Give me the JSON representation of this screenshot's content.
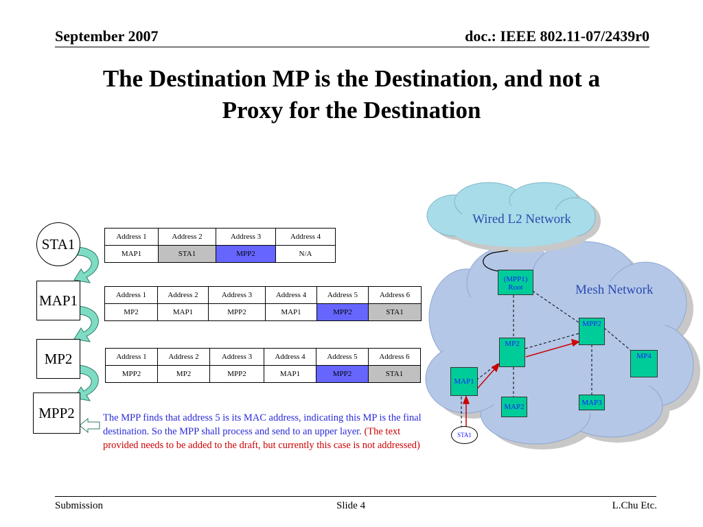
{
  "header": {
    "date": "September 2007",
    "doc": "doc.: IEEE 802.11-07/2439r0"
  },
  "title": {
    "line1": "The Destination MP is the Destination, and not a",
    "line2": "Proxy for the Destination"
  },
  "chain": {
    "sta1": "STA1",
    "map1": "MAP1",
    "mp2": "MP2",
    "mpp2": "MPP2"
  },
  "table1": {
    "headers": [
      "Address 1",
      "Address 2",
      "Address 3",
      "Address 4"
    ],
    "values": [
      "MAP1",
      "STA1",
      "MPP2",
      "N/A"
    ]
  },
  "table2": {
    "headers": [
      "Address 1",
      "Address 2",
      "Address 3",
      "Address 4",
      "Address 5",
      "Address 6"
    ],
    "values": [
      "MP2",
      "MAP1",
      "MPP2",
      "MAP1",
      "MPP2",
      "STA1"
    ]
  },
  "table3": {
    "headers": [
      "Address 1",
      "Address 2",
      "Address 3",
      "Address 4",
      "Address 5",
      "Address 6"
    ],
    "values": [
      "MPP2",
      "MP2",
      "MPP2",
      "MAP1",
      "MPP2",
      "STA1"
    ]
  },
  "note": {
    "blue": "The MPP finds that address 5 is its MAC address, indicating this MP is the final destination. So the MPP shall process and send to an upper layer.",
    "red": "(The text provided needs to be added to the draft, but currently this case is not addressed)"
  },
  "network": {
    "wired": "Wired L2 Network",
    "mesh": "Mesh Network",
    "root_line1": "(MPP1)",
    "root_line2": "Root",
    "mpp2": "MPP2",
    "mp2": "MP2",
    "mp4": "MP4",
    "map1": "MAP1",
    "map2": "MAP2",
    "map3": "MAP3",
    "sta1": "STA1"
  },
  "colors": {
    "node_fill": "#00cc99",
    "cloud_fill": "#b4c7e7",
    "wired_cloud_fill": "#a8dce8",
    "highlight_blue": "#6666ff",
    "highlight_gray": "#c0c0c0",
    "arrow": "#cc0000"
  },
  "footer": {
    "left": "Submission",
    "center": "Slide 4",
    "right": "L.Chu Etc."
  }
}
